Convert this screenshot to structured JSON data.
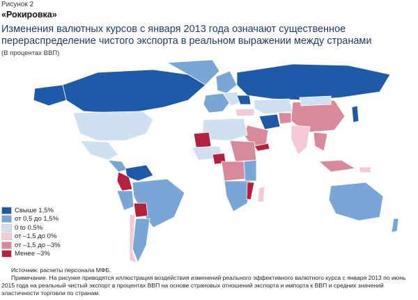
{
  "figure_label": "Рисунок 2",
  "figure_title": "«Рокировка»",
  "headline": "Изменения валютных курсов с января 2013 года означают существенное перераспределение чистого экспорта в реальном выражении между странами",
  "units_note": "(В процентах ВВП)",
  "colors": {
    "cat1": "#1f5aa8",
    "cat2": "#7aa6d6",
    "cat3": "#cfe0f0",
    "cat4": "#f2c9d4",
    "cat5": "#d98a9a",
    "cat6": "#b5203f",
    "no_data": "#e6e6e6",
    "ocean": "#ffffff"
  },
  "legend": [
    {
      "label": "Свыше 1,5%",
      "color": "#1f5aa8"
    },
    {
      "label": "от 0,5 до 1,5%",
      "color": "#7aa6d6"
    },
    {
      "label": "0 to 0.5%",
      "color": "#cfe0f0"
    },
    {
      "label": "от –1,5 до 0%",
      "color": "#f2c9d4"
    },
    {
      "label": "от –1,5 до –3%",
      "color": "#d98a9a"
    },
    {
      "label": "Менее –3%",
      "color": "#b5203f"
    }
  ],
  "source": "Источник: расчеты персонала МФБ.",
  "note": "Примечание. На рисунке приводятся иллюстрация воздействия изменений реального эффективного валютного курса с января 2013 по июнь 2015 года на реальный чистый экспорт в процентах ВВП на основе страновых отношений экспорта и импорта к ВВП и средних значений эластичности торговли по странам."
}
